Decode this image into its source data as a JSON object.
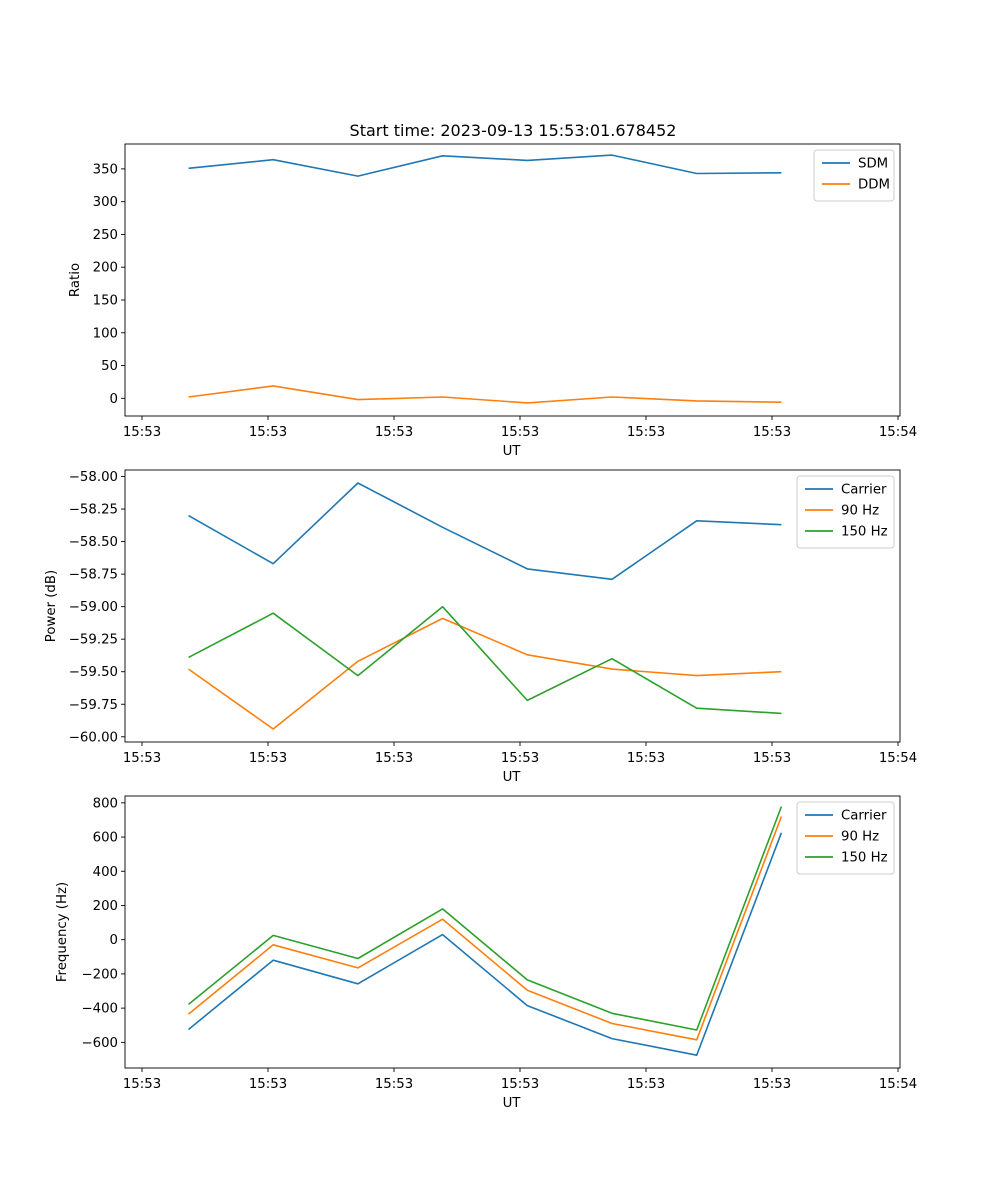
{
  "title": "Start time: 2023-09-13 15:53:01.678452",
  "colors": {
    "blue": "#1f77b4",
    "orange": "#ff7f0e",
    "green": "#2ca02c"
  },
  "x_ticks": [
    "15:53",
    "15:53",
    "15:53",
    "15:53",
    "15:53",
    "15:53",
    "15:54"
  ],
  "chart_data": [
    {
      "type": "line",
      "title": "Start time: 2023-09-13 15:53:01.678452",
      "xlabel": "UT",
      "ylabel": "Ratio",
      "ylim": [
        -27,
        388
      ],
      "yticks": [
        0,
        50,
        100,
        150,
        200,
        250,
        300,
        350
      ],
      "x": [
        1,
        2,
        3,
        4,
        5,
        6,
        7,
        8
      ],
      "xlim": [
        0.25,
        9.4
      ],
      "legend": "top-right",
      "series": [
        {
          "name": "SDM",
          "color": "#1f77b4",
          "values": [
            351,
            364,
            339,
            370,
            363,
            371,
            343,
            344
          ]
        },
        {
          "name": "DDM",
          "color": "#ff7f0e",
          "values": [
            2,
            19,
            -2,
            2,
            -7,
            2,
            -4,
            -6
          ]
        }
      ]
    },
    {
      "type": "line",
      "xlabel": "UT",
      "ylabel": "Power (dB)",
      "ylim": [
        -60.04,
        -57.95
      ],
      "yticks": [
        -60.0,
        -59.75,
        -59.5,
        -59.25,
        -59.0,
        -58.75,
        -58.5,
        -58.25,
        -58.0
      ],
      "x": [
        1,
        2,
        3,
        4,
        5,
        6,
        7,
        8
      ],
      "xlim": [
        0.25,
        9.4
      ],
      "legend": "top-right",
      "series": [
        {
          "name": "Carrier",
          "color": "#1f77b4",
          "values": [
            -58.3,
            -58.67,
            -58.05,
            -58.39,
            -58.71,
            -58.79,
            -58.34,
            -58.37
          ]
        },
        {
          "name": "90 Hz",
          "color": "#ff7f0e",
          "values": [
            -59.48,
            -59.94,
            -59.42,
            -59.09,
            -59.37,
            -59.48,
            -59.53,
            -59.5
          ]
        },
        {
          "name": "150 Hz",
          "color": "#2ca02c",
          "values": [
            -59.39,
            -59.05,
            -59.53,
            -59.0,
            -59.72,
            -59.4,
            -59.78,
            -59.82
          ]
        }
      ]
    },
    {
      "type": "line",
      "xlabel": "UT",
      "ylabel": "Frequency (Hz)",
      "ylim": [
        -750,
        840
      ],
      "yticks": [
        -600,
        -400,
        -200,
        0,
        200,
        400,
        600,
        800
      ],
      "x": [
        1,
        2,
        3,
        4,
        5,
        6,
        7,
        8
      ],
      "xlim": [
        0.25,
        9.4
      ],
      "legend": "top-right",
      "series": [
        {
          "name": "Carrier",
          "color": "#1f77b4",
          "values": [
            -525,
            -120,
            -258,
            30,
            -385,
            -578,
            -675,
            625
          ]
        },
        {
          "name": "90 Hz",
          "color": "#ff7f0e",
          "values": [
            -435,
            -30,
            -165,
            120,
            -295,
            -490,
            -585,
            720
          ]
        },
        {
          "name": "150 Hz",
          "color": "#2ca02c",
          "values": [
            -378,
            25,
            -110,
            180,
            -235,
            -430,
            -528,
            778
          ]
        }
      ]
    }
  ]
}
